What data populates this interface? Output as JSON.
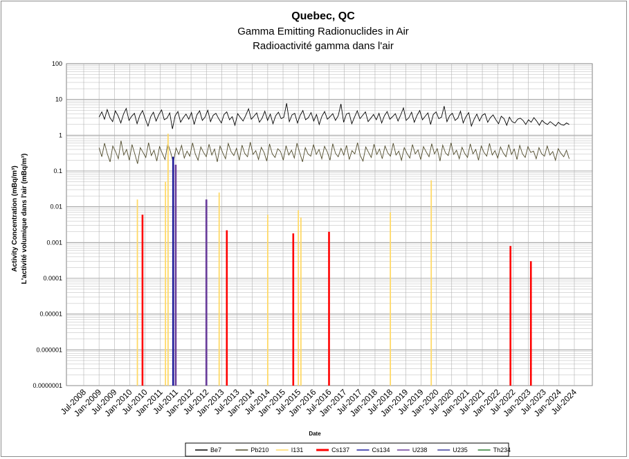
{
  "chart_data": {
    "type": "line",
    "title": "Quebec, QC",
    "subtitle_en": "Gamma Emitting Radionuclides in Air",
    "subtitle_fr": "Radioactivité gamma dans l'air",
    "xlabel": "Date",
    "ylabel_line1": "Activity Concentration  (mBq/m³)",
    "ylabel_line2": "L'activité volumique dans l'air (mBq/m³)",
    "y_scale": "log",
    "ylim": [
      1e-07,
      100
    ],
    "y_ticks": [
      "100",
      "10",
      "1",
      "0.1",
      "0.01",
      "0.001",
      "0.0001",
      "0.00001",
      "0.000001",
      "0.0000001"
    ],
    "x_ticks": [
      "Jul-2008",
      "Jan-2009",
      "Jul-2009",
      "Jan-2010",
      "Jul-2010",
      "Jan-2011",
      "Jul-2011",
      "Jan-2012",
      "Jul-2012",
      "Jan-2013",
      "Jul-2013",
      "Jan-2014",
      "Jul-2014",
      "Jan-2015",
      "Jul-2015",
      "Jan-2016",
      "Jul-2016",
      "Jan-2017",
      "Jul-2017",
      "Jan-2018",
      "Jul-2018",
      "Jan-2019",
      "Jul-2019",
      "Jan-2020",
      "Jul-2020",
      "Jan-2021",
      "Jul-2021",
      "Jan-2022",
      "Jul-2022",
      "Jan-2023",
      "Jul-2023",
      "Jan-2024",
      "Jul-2024"
    ],
    "grid": true,
    "legend_position": "bottom",
    "colors": {
      "Be7": "#000000",
      "Pb210": "#4f4a2a",
      "I131": "#ffd966",
      "Cs137": "#ff0000",
      "Cs134": "#1f1f9f",
      "U238": "#6a3d9a",
      "U235": "#3b3b9b",
      "Th234": "#2e7d32"
    },
    "series": [
      {
        "name": "Be7",
        "type": "line",
        "x_range": [
          "Jan-2009",
          "May-2024"
        ],
        "typical_range": [
          1.2,
          5.5
        ],
        "monthly_values": [
          3.2,
          4.5,
          2.8,
          5.2,
          3.1,
          2.4,
          4.8,
          3.5,
          2.2,
          3.9,
          5.6,
          2.6,
          3.4,
          4.1,
          2.1,
          3.6,
          4.9,
          2.9,
          1.8,
          3.3,
          4.4,
          2.5,
          3.8,
          5.1,
          2.7,
          3.0,
          4.2,
          1.5,
          3.5,
          4.6,
          2.3,
          3.1,
          3.9,
          2.8,
          4.3,
          2.0,
          3.7,
          4.8,
          2.6,
          3.2,
          5.0,
          2.4,
          3.6,
          4.1,
          2.9,
          2.2,
          3.8,
          4.5,
          2.7,
          3.3,
          1.9,
          4.0,
          3.1,
          2.5,
          3.6,
          5.5,
          2.8,
          3.4,
          4.2,
          2.3,
          3.0,
          4.7,
          2.6,
          3.9,
          2.1,
          3.5,
          4.4,
          2.9,
          3.2,
          7.8,
          2.4,
          3.7,
          4.1,
          2.2,
          3.6,
          4.9,
          2.7,
          3.1,
          4.3,
          2.5,
          3.8,
          2.0,
          3.4,
          4.6,
          2.8,
          3.3,
          4.0,
          2.6,
          3.5,
          7.5,
          2.3,
          3.9,
          4.2,
          2.1,
          3.2,
          4.8,
          2.9,
          3.6,
          4.5,
          2.4,
          3.0,
          3.8,
          2.7,
          4.1,
          2.2,
          3.5,
          4.6,
          2.8,
          3.3,
          4.0,
          2.5,
          3.7,
          5.8,
          2.6,
          3.1,
          4.4,
          2.3,
          3.6,
          4.9,
          2.7,
          3.4,
          4.2,
          2.0,
          3.8,
          4.5,
          2.9,
          3.2,
          6.5,
          2.4,
          3.5,
          4.1,
          2.6,
          3.0,
          4.7,
          2.2,
          3.3,
          4.3,
          1.8,
          2.8,
          3.9,
          2.5,
          3.6,
          4.0,
          2.3,
          3.1,
          3.7,
          2.7,
          2.1,
          3.4,
          2.9,
          1.9,
          3.2,
          2.4,
          2.2,
          2.8,
          3.0,
          2.6,
          2.0,
          2.7,
          2.3,
          3.1,
          2.5,
          1.9,
          2.6,
          2.2,
          2.0,
          2.4,
          2.1,
          1.8,
          2.3,
          2.0,
          1.9,
          2.2,
          2.0
        ]
      },
      {
        "name": "Pb210",
        "type": "line",
        "x_range": [
          "Jan-2009",
          "May-2024"
        ],
        "typical_range": [
          0.12,
          0.8
        ],
        "monthly_values": [
          0.45,
          0.25,
          0.6,
          0.3,
          0.18,
          0.5,
          0.35,
          0.22,
          0.7,
          0.28,
          0.4,
          0.2,
          0.55,
          0.3,
          0.16,
          0.45,
          0.33,
          0.24,
          0.62,
          0.27,
          0.38,
          0.19,
          0.48,
          0.31,
          0.21,
          0.58,
          0.34,
          0.17,
          0.44,
          0.29,
          0.52,
          0.23,
          0.36,
          0.26,
          0.61,
          0.3,
          0.2,
          0.47,
          0.33,
          0.25,
          0.56,
          0.28,
          0.41,
          0.18,
          0.5,
          0.32,
          0.22,
          0.59,
          0.35,
          0.27,
          0.43,
          0.2,
          0.53,
          0.31,
          0.25,
          0.64,
          0.29,
          0.37,
          0.21,
          0.46,
          0.33,
          0.19,
          0.57,
          0.3,
          0.24,
          0.42,
          0.35,
          0.2,
          0.51,
          0.28,
          0.38,
          0.23,
          0.6,
          0.32,
          0.18,
          0.45,
          0.3,
          0.26,
          0.55,
          0.29,
          0.4,
          0.22,
          0.49,
          0.34,
          0.2,
          0.58,
          0.31,
          0.25,
          0.43,
          0.28,
          0.52,
          0.21,
          0.37,
          0.3,
          0.62,
          0.27,
          0.19,
          0.47,
          0.33,
          0.24,
          0.56,
          0.29,
          0.41,
          0.22,
          0.5,
          0.32,
          0.26,
          0.6,
          0.28,
          0.36,
          0.2,
          0.45,
          0.31,
          0.23,
          0.55,
          0.3,
          0.39,
          0.21,
          0.48,
          0.34,
          0.25,
          0.58,
          0.3,
          0.42,
          0.19,
          0.53,
          0.32,
          0.27,
          0.61,
          0.29,
          0.38,
          0.22,
          0.46,
          0.31,
          0.24,
          0.57,
          0.3,
          0.4,
          0.2,
          0.5,
          0.33,
          0.26,
          0.59,
          0.28,
          0.37,
          0.23,
          0.47,
          0.32,
          0.25,
          0.55,
          0.29,
          0.41,
          0.21,
          0.52,
          0.3,
          0.24,
          0.48,
          0.33,
          0.36,
          0.22,
          0.45,
          0.3,
          0.26,
          0.5,
          0.28,
          0.35,
          0.2,
          0.42,
          0.31,
          0.25,
          0.38,
          0.22
        ]
      },
      {
        "name": "I131",
        "type": "spike",
        "points": [
          {
            "x": "Apr-2010",
            "y": 0.016
          },
          {
            "x": "Mar-2011",
            "y": 0.05
          },
          {
            "x": "Apr-2011",
            "y": 1.1
          },
          {
            "x": "Dec-2012",
            "y": 0.025
          },
          {
            "x": "Jul-2014",
            "y": 0.006
          },
          {
            "x": "Jul-2015",
            "y": 0.008
          },
          {
            "x": "Aug-2015",
            "y": 0.005
          },
          {
            "x": "Jul-2018",
            "y": 0.007
          },
          {
            "x": "Nov-2019",
            "y": 0.055
          }
        ]
      },
      {
        "name": "Cs137",
        "type": "spike",
        "points": [
          {
            "x": "Jun-2010",
            "y": 0.006
          },
          {
            "x": "Jun-2011",
            "y": 0.2
          },
          {
            "x": "Mar-2013",
            "y": 0.0022
          },
          {
            "x": "May-2015",
            "y": 0.0018
          },
          {
            "x": "Jul-2016",
            "y": 0.002
          },
          {
            "x": "Jun-2022",
            "y": 0.0008
          },
          {
            "x": "Feb-2023",
            "y": 0.0003
          }
        ]
      },
      {
        "name": "Cs134",
        "type": "spike",
        "points": [
          {
            "x": "Jun-2011",
            "y": 0.25
          },
          {
            "x": "Jul-2012",
            "y": 0.015
          }
        ]
      },
      {
        "name": "U238",
        "type": "spike",
        "points": [
          {
            "x": "Jul-2011",
            "y": 0.15
          },
          {
            "x": "Jul-2012",
            "y": 0.016
          }
        ]
      },
      {
        "name": "U235",
        "type": "spike",
        "points": []
      },
      {
        "name": "Th234",
        "type": "spike",
        "points": []
      }
    ]
  },
  "legend": {
    "items": [
      "Be7",
      "Pb210",
      "I131",
      "Cs137",
      "Cs134",
      "U238",
      "U235",
      "Th234"
    ]
  }
}
